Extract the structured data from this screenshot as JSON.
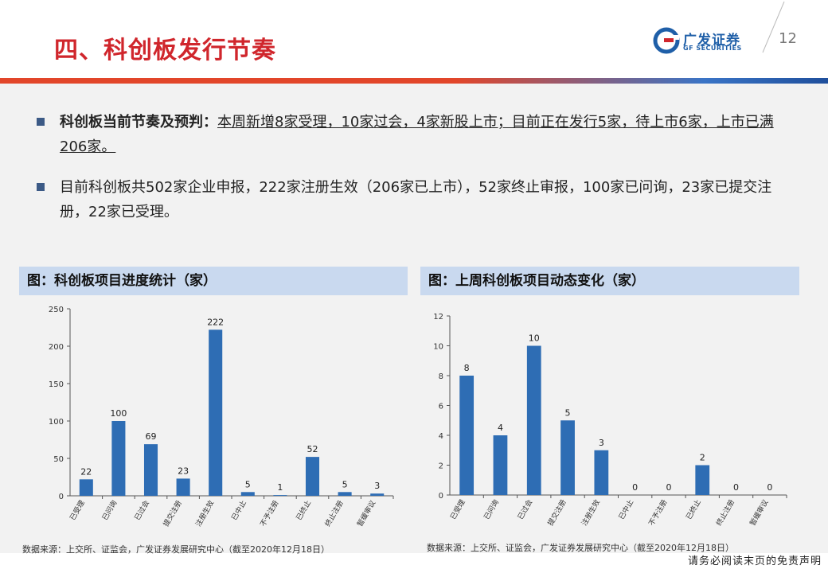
{
  "header": {
    "title": "四、科创板发行节奏",
    "logo_cn": "广发证券",
    "logo_en": "GF SECURITIES",
    "page_number": "12"
  },
  "bullets": [
    {
      "bold": "科创板当前节奏及预判：",
      "underlined": "本周新增8家受理，10家过会，4家新股上市；目前正在发行5家，待上市6家，上市已满206家。"
    },
    {
      "text": "目前科创板共502家企业申报，222家注册生效（206家已上市），52家终止审报，100家已问询，23家已提交注册，22家已受理。"
    }
  ],
  "chart_data": [
    {
      "type": "bar",
      "title": "图：科创板项目进度统计（家）",
      "categories": [
        "已受理",
        "已问询",
        "已过会",
        "提交注册",
        "注册生效",
        "已中止",
        "不予注册",
        "已终止",
        "终止注册",
        "暂缓审议"
      ],
      "values": [
        22,
        100,
        69,
        23,
        222,
        5,
        1,
        52,
        5,
        3
      ],
      "yticks": [
        0,
        50,
        100,
        150,
        200,
        250
      ],
      "ylim": [
        0,
        250
      ],
      "color": "#2e6db4",
      "source": "数据来源：上交所、证监会，广发证券发展研究中心（截至2020年12月18日）"
    },
    {
      "type": "bar",
      "title": "图：上周科创板项目动态变化（家）",
      "categories": [
        "已受理",
        "已问询",
        "已过会",
        "提交注册",
        "注册生效",
        "已中止",
        "不予注册",
        "已终止",
        "终止注册",
        "暂缓审议"
      ],
      "values": [
        8,
        4,
        10,
        5,
        3,
        0,
        0,
        2,
        0,
        0
      ],
      "yticks": [
        0,
        2,
        4,
        6,
        8,
        10,
        12
      ],
      "ylim": [
        0,
        12
      ],
      "color": "#2e6db4",
      "source": "数据来源：上交所、证监会，广发证券发展研究中心（截至2020年12月18日）"
    }
  ],
  "footer": {
    "disclaimer": "请务必阅读末页的免责声明"
  }
}
